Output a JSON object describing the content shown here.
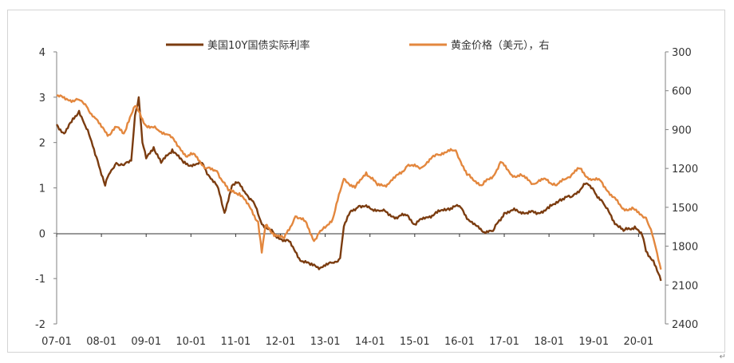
{
  "chart_data": {
    "type": "line",
    "title": "",
    "xlabel": "",
    "ylabel_left": "",
    "ylabel_right": "",
    "x_tick_labels": [
      "07-01",
      "08-01",
      "09-01",
      "10-01",
      "11-01",
      "12-01",
      "13-01",
      "14-01",
      "15-01",
      "16-01",
      "17-01",
      "18-01",
      "19-01",
      "20-01"
    ],
    "left_axis": {
      "min": -2,
      "max": 4,
      "ticks": [
        "4",
        "3",
        "2",
        "1",
        "0",
        "-1",
        "-2"
      ]
    },
    "right_axis": {
      "min": 300,
      "max": 2400,
      "inverted": true,
      "ticks": [
        "300",
        "600",
        "900",
        "1200",
        "1500",
        "1800",
        "2100",
        "2400"
      ]
    },
    "legend_position": "top",
    "grid": false,
    "series": [
      {
        "name": "美国10Y国债实际利率",
        "axis": "left",
        "color": "#7b3c10",
        "points": [
          [
            "2007-01",
            2.4
          ],
          [
            "2007-03",
            2.2
          ],
          [
            "2007-05",
            2.45
          ],
          [
            "2007-07",
            2.7
          ],
          [
            "2007-08",
            2.5
          ],
          [
            "2007-10",
            2.1
          ],
          [
            "2007-12",
            1.6
          ],
          [
            "2008-02",
            1.05
          ],
          [
            "2008-03",
            1.3
          ],
          [
            "2008-05",
            1.55
          ],
          [
            "2008-07",
            1.5
          ],
          [
            "2008-09",
            1.6
          ],
          [
            "2008-10",
            2.6
          ],
          [
            "2008-11",
            3.0
          ],
          [
            "2008-12",
            2.0
          ],
          [
            "2009-01",
            1.65
          ],
          [
            "2009-03",
            1.9
          ],
          [
            "2009-05",
            1.55
          ],
          [
            "2009-08",
            1.85
          ],
          [
            "2009-11",
            1.55
          ],
          [
            "2010-02",
            1.5
          ],
          [
            "2010-04",
            1.55
          ],
          [
            "2010-06",
            1.25
          ],
          [
            "2010-08",
            1.05
          ],
          [
            "2010-10",
            0.45
          ],
          [
            "2010-12",
            1.05
          ],
          [
            "2011-02",
            1.1
          ],
          [
            "2011-04",
            0.85
          ],
          [
            "2011-06",
            0.65
          ],
          [
            "2011-08",
            0.2
          ],
          [
            "2011-10",
            0.1
          ],
          [
            "2011-12",
            -0.1
          ],
          [
            "2012-03",
            -0.15
          ],
          [
            "2012-06",
            -0.55
          ],
          [
            "2012-09",
            -0.7
          ],
          [
            "2012-12",
            -0.75
          ],
          [
            "2013-03",
            -0.65
          ],
          [
            "2013-05",
            -0.55
          ],
          [
            "2013-06",
            0.15
          ],
          [
            "2013-08",
            0.5
          ],
          [
            "2013-10",
            0.6
          ],
          [
            "2014-01",
            0.55
          ],
          [
            "2014-04",
            0.5
          ],
          [
            "2014-08",
            0.35
          ],
          [
            "2014-11",
            0.4
          ],
          [
            "2015-01",
            0.2
          ],
          [
            "2015-04",
            0.35
          ],
          [
            "2015-07",
            0.45
          ],
          [
            "2015-10",
            0.55
          ],
          [
            "2016-01",
            0.6
          ],
          [
            "2016-04",
            0.25
          ],
          [
            "2016-07",
            0.05
          ],
          [
            "2016-10",
            0.05
          ],
          [
            "2017-01",
            0.45
          ],
          [
            "2017-04",
            0.5
          ],
          [
            "2017-07",
            0.45
          ],
          [
            "2017-10",
            0.45
          ],
          [
            "2018-01",
            0.55
          ],
          [
            "2018-04",
            0.75
          ],
          [
            "2018-07",
            0.8
          ],
          [
            "2018-11",
            1.1
          ],
          [
            "2019-01",
            0.95
          ],
          [
            "2019-04",
            0.6
          ],
          [
            "2019-07",
            0.2
          ],
          [
            "2019-09",
            0.05
          ],
          [
            "2019-12",
            0.15
          ],
          [
            "2020-02",
            -0.05
          ],
          [
            "2020-03",
            -0.4
          ],
          [
            "2020-05",
            -0.6
          ],
          [
            "2020-07",
            -1.05
          ]
        ]
      },
      {
        "name": "黄金价格（美元），右",
        "axis": "right",
        "color": "#e3873e",
        "points": [
          [
            "2007-01",
            640
          ],
          [
            "2007-04",
            670
          ],
          [
            "2007-07",
            670
          ],
          [
            "2007-09",
            720
          ],
          [
            "2007-11",
            800
          ],
          [
            "2008-01",
            880
          ],
          [
            "2008-03",
            940
          ],
          [
            "2008-05",
            880
          ],
          [
            "2008-07",
            930
          ],
          [
            "2008-08",
            850
          ],
          [
            "2008-10",
            720
          ],
          [
            "2008-11",
            760
          ],
          [
            "2009-01",
            870
          ],
          [
            "2009-04",
            900
          ],
          [
            "2009-07",
            940
          ],
          [
            "2009-10",
            1040
          ],
          [
            "2009-12",
            1110
          ],
          [
            "2010-02",
            1090
          ],
          [
            "2010-05",
            1200
          ],
          [
            "2010-08",
            1220
          ],
          [
            "2010-11",
            1370
          ],
          [
            "2011-02",
            1390
          ],
          [
            "2011-05",
            1510
          ],
          [
            "2011-07",
            1610
          ],
          [
            "2011-08",
            1850
          ],
          [
            "2011-09",
            1640
          ],
          [
            "2011-11",
            1700
          ],
          [
            "2012-02",
            1740
          ],
          [
            "2012-05",
            1570
          ],
          [
            "2012-08",
            1620
          ],
          [
            "2012-10",
            1760
          ],
          [
            "2012-12",
            1680
          ],
          [
            "2013-03",
            1590
          ],
          [
            "2013-06",
            1280
          ],
          [
            "2013-09",
            1350
          ],
          [
            "2013-12",
            1230
          ],
          [
            "2014-03",
            1330
          ],
          [
            "2014-06",
            1320
          ],
          [
            "2014-11",
            1180
          ],
          [
            "2015-03",
            1190
          ],
          [
            "2015-07",
            1090
          ],
          [
            "2015-12",
            1060
          ],
          [
            "2016-03",
            1250
          ],
          [
            "2016-07",
            1330
          ],
          [
            "2016-10",
            1260
          ],
          [
            "2016-12",
            1150
          ],
          [
            "2017-03",
            1250
          ],
          [
            "2017-06",
            1260
          ],
          [
            "2017-09",
            1320
          ],
          [
            "2017-12",
            1280
          ],
          [
            "2018-03",
            1330
          ],
          [
            "2018-06",
            1270
          ],
          [
            "2018-09",
            1200
          ],
          [
            "2018-12",
            1280
          ],
          [
            "2019-03",
            1300
          ],
          [
            "2019-06",
            1420
          ],
          [
            "2019-09",
            1510
          ],
          [
            "2019-12",
            1520
          ],
          [
            "2020-03",
            1580
          ],
          [
            "2020-05",
            1740
          ],
          [
            "2020-07",
            1980
          ]
        ]
      }
    ]
  }
}
